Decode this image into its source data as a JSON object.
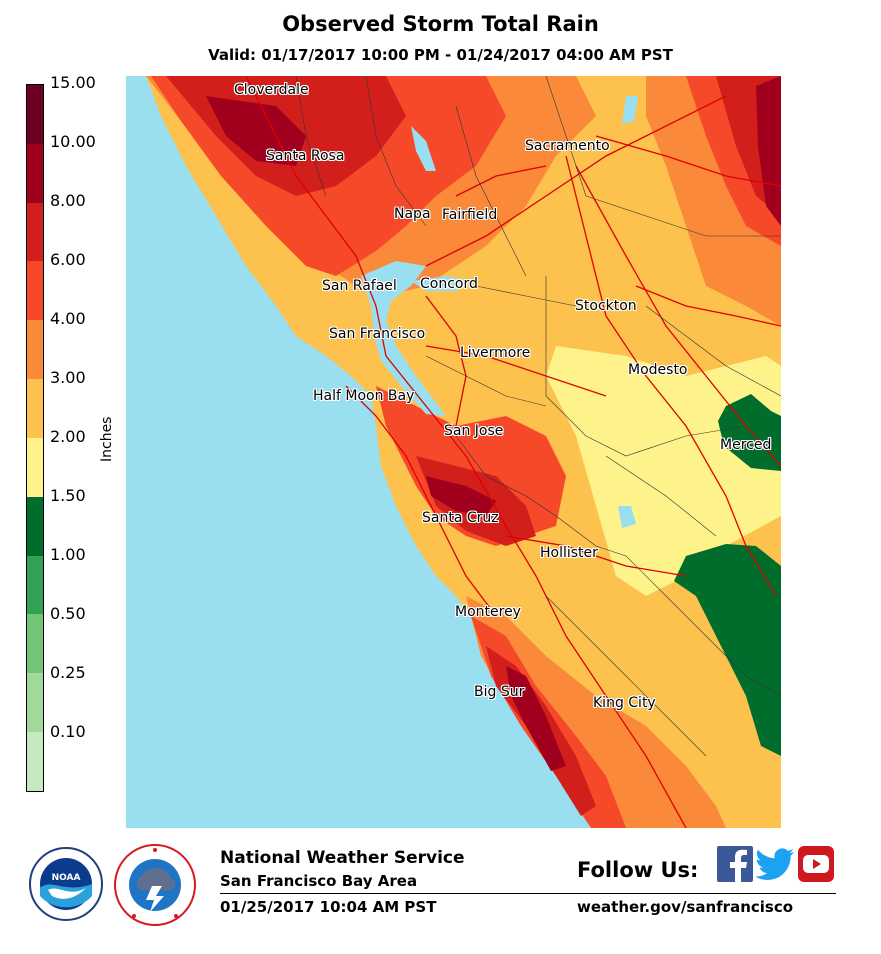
{
  "header": {
    "title": "Observed Storm Total Rain",
    "subtitle": "Valid: 01/17/2017 10:00 PM - 01/24/2017 04:00 AM PST"
  },
  "legend": {
    "unit": "Inches",
    "bins": [
      {
        "label": "15.00",
        "color": "#6b0020"
      },
      {
        "label": "10.00",
        "color": "#a0001e"
      },
      {
        "label": "8.00",
        "color": "#d21f1c"
      },
      {
        "label": "6.00",
        "color": "#f5492a"
      },
      {
        "label": "4.00",
        "color": "#fa8a3a"
      },
      {
        "label": "3.00",
        "color": "#fdc14e"
      },
      {
        "label": "2.00",
        "color": "#fef38a"
      },
      {
        "label": "1.50",
        "color": "#006d2c"
      },
      {
        "label": "1.00",
        "color": "#31a354"
      },
      {
        "label": "0.50",
        "color": "#74c476"
      },
      {
        "label": "0.25",
        "color": "#a1d99b"
      },
      {
        "label": "0.10",
        "color": "#c7e9c0"
      }
    ]
  },
  "map": {
    "water_color": "#99dff0",
    "cities": [
      {
        "name": "Cloverdale"
      },
      {
        "name": "Santa Rosa"
      },
      {
        "name": "Napa"
      },
      {
        "name": "Fairfield"
      },
      {
        "name": "Sacramento"
      },
      {
        "name": "San Rafael"
      },
      {
        "name": "Concord"
      },
      {
        "name": "Stockton"
      },
      {
        "name": "San Francisco"
      },
      {
        "name": "Livermore"
      },
      {
        "name": "Modesto"
      },
      {
        "name": "Half Moon Bay"
      },
      {
        "name": "San Jose"
      },
      {
        "name": "Merced"
      },
      {
        "name": "Santa Cruz"
      },
      {
        "name": "Hollister"
      },
      {
        "name": "Monterey"
      },
      {
        "name": "Big Sur"
      },
      {
        "name": "King City"
      }
    ]
  },
  "footer": {
    "noaa_logo": "noaa-logo",
    "nws_logo": "nws-logo",
    "agency": "National Weather Service",
    "office": "San Francisco Bay Area",
    "issued": "01/25/2017 10:04 AM PST",
    "follow_label": "Follow Us:",
    "website": "weather.gov/sanfrancisco",
    "social": [
      {
        "icon": "facebook-icon",
        "color": "#3b5998"
      },
      {
        "icon": "twitter-icon",
        "color": "#1da1f2"
      },
      {
        "icon": "youtube-icon",
        "color": "#cc181e"
      }
    ]
  }
}
